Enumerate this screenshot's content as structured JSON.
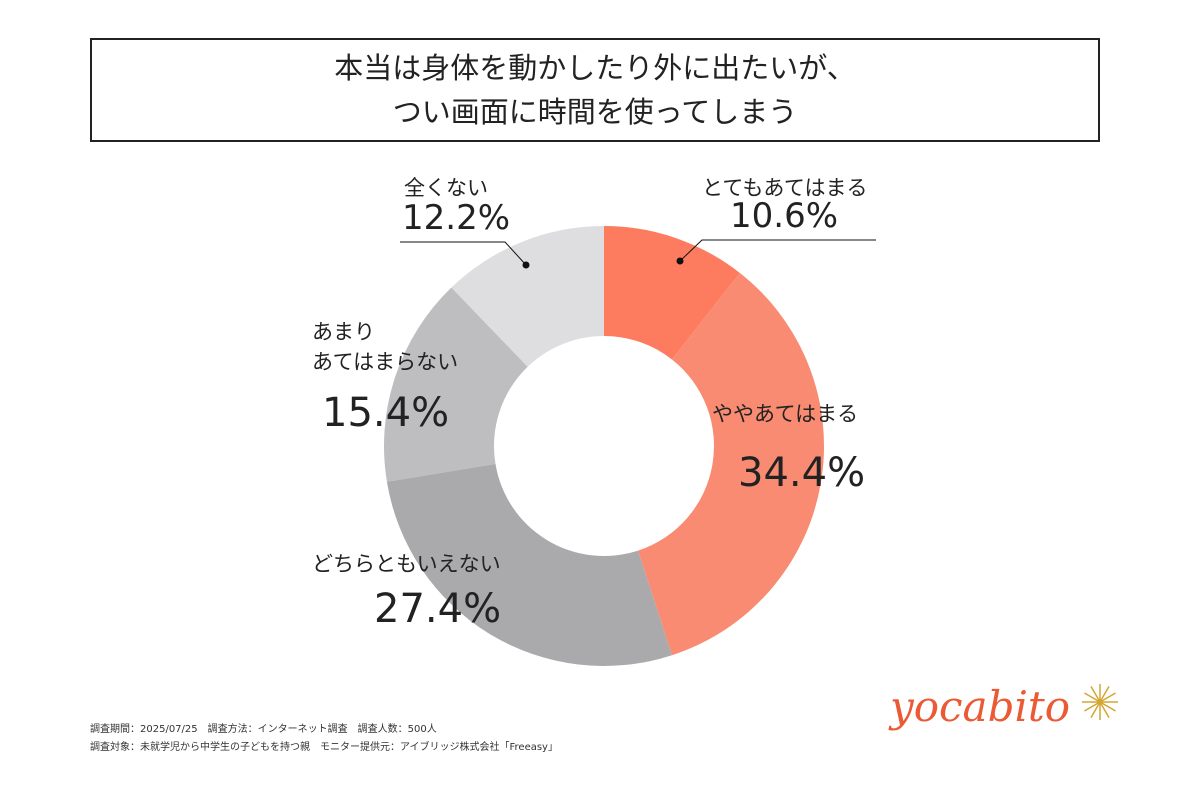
{
  "title": {
    "line1": "本当は身体を動かしたり外に出たいが、",
    "line2": "つい画面に時間を使ってしまう"
  },
  "chart_data": {
    "type": "pie",
    "variant": "donut",
    "title": "本当は身体を動かしたり外に出たいが、つい画面に時間を使ってしまう",
    "categories": [
      "とてもあてはまる",
      "ややあてはまる",
      "どちらともいえない",
      "あまりあてはまらない",
      "全くない"
    ],
    "values": [
      10.6,
      34.4,
      27.4,
      15.4,
      12.2
    ],
    "value_labels": [
      "10.6%",
      "34.4%",
      "27.4%",
      "15.4%",
      "12.2%"
    ],
    "colors": [
      "#fd7c60",
      "#f98b73",
      "#aaa9ac",
      "#bebdc0",
      "#dedde0"
    ],
    "start": "top",
    "direction": "clockwise"
  },
  "label_extra": {
    "cat4_line1": "あまり",
    "cat4_line2": "あてはまらない"
  },
  "footer": {
    "line1": "調査期間：2025/07/25　調査方法：インターネット調査　調査人数：500人",
    "line2": "調査対象：未就学児から中学生の子どもを持つ親　モニター提供元：アイブリッジ株式会社「Freeasy」"
  },
  "logo": {
    "text": "yocabito",
    "color": "#ec5a35",
    "accent": "#d4a531"
  }
}
